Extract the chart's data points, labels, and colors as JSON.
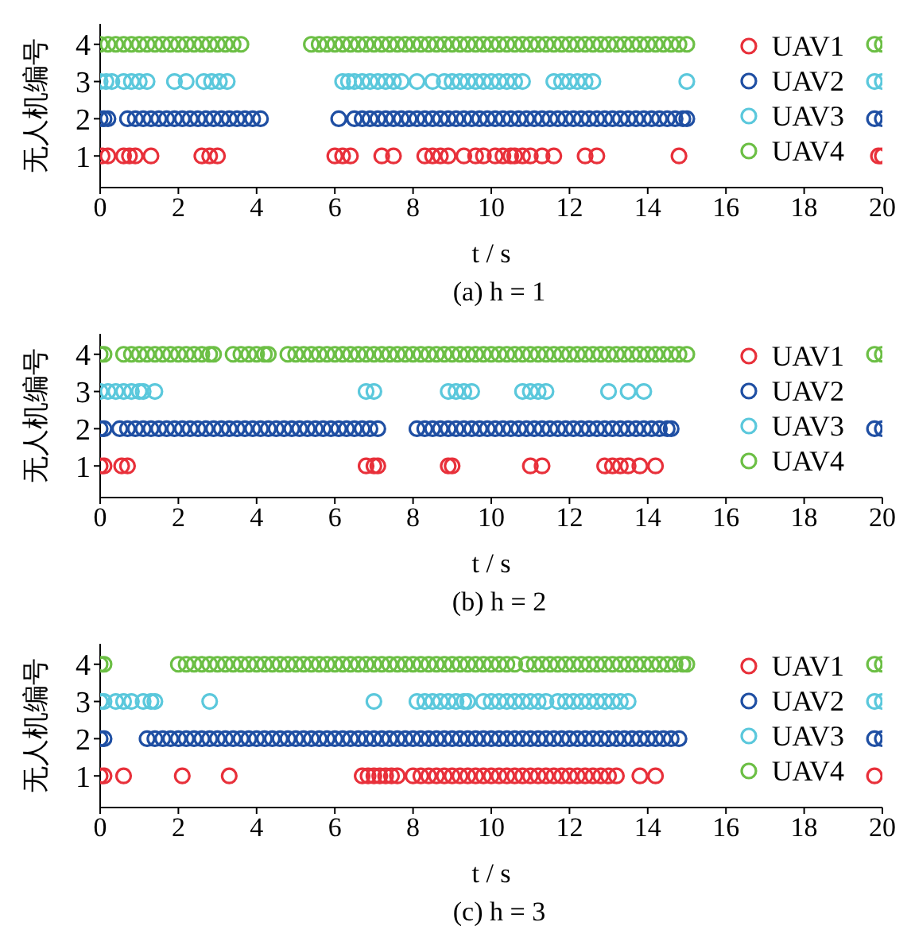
{
  "chart_data": [
    {
      "type": "scatter",
      "title": "(a) h = 1",
      "xlabel": "t / s",
      "ylabel": "无人机编号",
      "xlim": [
        0,
        20
      ],
      "xticks": [
        0,
        2,
        4,
        6,
        8,
        10,
        12,
        14,
        16,
        18,
        20
      ],
      "ylim": [
        0.15,
        4.55
      ],
      "yticks": [
        1,
        2,
        3,
        4
      ],
      "grid": false,
      "legend": "top right",
      "marker": "circle",
      "series": [
        {
          "name": "UAV1",
          "color": "#e8303a",
          "x": [
            0.05,
            0.2,
            0.6,
            0.75,
            0.9,
            1.3,
            2.6,
            2.8,
            3.0,
            6.0,
            6.2,
            6.4,
            7.2,
            7.5,
            8.3,
            8.5,
            8.7,
            8.9,
            9.3,
            9.6,
            9.8,
            10.1,
            10.3,
            10.5,
            10.6,
            10.8,
            11.0,
            11.3,
            11.6,
            12.4,
            12.7,
            14.8,
            19.9,
            20
          ],
          "values": [
            1,
            1,
            1,
            1,
            1,
            1,
            1,
            1,
            1,
            1,
            1,
            1,
            1,
            1,
            1,
            1,
            1,
            1,
            1,
            1,
            1,
            1,
            1,
            1,
            1,
            1,
            1,
            1,
            1,
            1,
            1,
            1,
            1,
            1
          ]
        },
        {
          "name": "UAV2",
          "color": "#1f4fa3",
          "x": [
            0,
            0.1,
            0.2,
            0.7,
            0.9,
            1.1,
            1.3,
            1.5,
            1.7,
            1.9,
            2.1,
            2.3,
            2.5,
            2.7,
            2.9,
            3.1,
            3.3,
            3.5,
            3.7,
            3.9,
            4.1,
            6.1,
            6.5,
            6.7,
            6.9,
            7.1,
            7.3,
            7.5,
            7.7,
            7.9,
            8.1,
            8.3,
            8.5,
            8.7,
            8.9,
            9.1,
            9.3,
            9.5,
            9.7,
            9.9,
            10.1,
            10.3,
            10.5,
            10.7,
            10.9,
            11.1,
            11.3,
            11.5,
            11.7,
            11.9,
            12.1,
            12.3,
            12.5,
            12.7,
            12.9,
            13.1,
            13.3,
            13.5,
            13.7,
            13.9,
            14.1,
            14.3,
            14.5,
            14.7,
            14.9,
            15.0,
            19.8,
            20
          ],
          "values": [
            2,
            2,
            2,
            2,
            2,
            2,
            2,
            2,
            2,
            2,
            2,
            2,
            2,
            2,
            2,
            2,
            2,
            2,
            2,
            2,
            2,
            2,
            2,
            2,
            2,
            2,
            2,
            2,
            2,
            2,
            2,
            2,
            2,
            2,
            2,
            2,
            2,
            2,
            2,
            2,
            2,
            2,
            2,
            2,
            2,
            2,
            2,
            2,
            2,
            2,
            2,
            2,
            2,
            2,
            2,
            2,
            2,
            2,
            2,
            2,
            2,
            2,
            2,
            2,
            2,
            2,
            2,
            2
          ]
        },
        {
          "name": "UAV3",
          "color": "#5bc8dc",
          "x": [
            0,
            0.15,
            0.3,
            0.6,
            0.8,
            1.0,
            1.2,
            1.9,
            2.2,
            2.65,
            2.85,
            3.05,
            3.25,
            6.2,
            6.35,
            6.5,
            6.7,
            6.9,
            7.1,
            7.3,
            7.5,
            7.7,
            8.1,
            8.5,
            8.8,
            9.0,
            9.2,
            9.4,
            9.6,
            9.8,
            10.0,
            10.2,
            10.4,
            10.6,
            10.8,
            11.6,
            11.8,
            12.0,
            12.2,
            12.4,
            12.6,
            15.0,
            19.8,
            20
          ],
          "values": [
            3,
            3,
            3,
            3,
            3,
            3,
            3,
            3,
            3,
            3,
            3,
            3,
            3,
            3,
            3,
            3,
            3,
            3,
            3,
            3,
            3,
            3,
            3,
            3,
            3,
            3,
            3,
            3,
            3,
            3,
            3,
            3,
            3,
            3,
            3,
            3,
            3,
            3,
            3,
            3,
            3,
            3,
            3,
            3
          ]
        },
        {
          "name": "UAV4",
          "color": "#6cbf45",
          "x": [
            0,
            0.2,
            0.4,
            0.6,
            0.8,
            1,
            1.2,
            1.4,
            1.6,
            1.8,
            2,
            2.2,
            2.4,
            2.6,
            2.8,
            3,
            3.2,
            3.4,
            3.6,
            5.4,
            5.6,
            5.8,
            6,
            6.2,
            6.4,
            6.6,
            6.8,
            7,
            7.2,
            7.4,
            7.6,
            7.8,
            8,
            8.2,
            8.4,
            8.6,
            8.8,
            9,
            9.2,
            9.4,
            9.6,
            9.8,
            10,
            10.2,
            10.4,
            10.6,
            10.8,
            11,
            11.2,
            11.4,
            11.6,
            11.8,
            12,
            12.2,
            12.4,
            12.6,
            12.8,
            13,
            13.2,
            13.4,
            13.6,
            13.8,
            14,
            14.2,
            14.4,
            14.6,
            14.8,
            15,
            19.8,
            20
          ],
          "values": [
            4,
            4,
            4,
            4,
            4,
            4,
            4,
            4,
            4,
            4,
            4,
            4,
            4,
            4,
            4,
            4,
            4,
            4,
            4,
            4,
            4,
            4,
            4,
            4,
            4,
            4,
            4,
            4,
            4,
            4,
            4,
            4,
            4,
            4,
            4,
            4,
            4,
            4,
            4,
            4,
            4,
            4,
            4,
            4,
            4,
            4,
            4,
            4,
            4,
            4,
            4,
            4,
            4,
            4,
            4,
            4,
            4,
            4,
            4,
            4,
            4,
            4,
            4,
            4,
            4,
            4,
            4,
            4,
            4,
            4
          ]
        }
      ]
    },
    {
      "type": "scatter",
      "title": "(b) h = 2",
      "xlabel": "t / s",
      "ylabel": "无人机编号",
      "xlim": [
        0,
        20
      ],
      "xticks": [
        0,
        2,
        4,
        6,
        8,
        10,
        12,
        14,
        16,
        18,
        20
      ],
      "ylim": [
        0.15,
        4.55
      ],
      "yticks": [
        1,
        2,
        3,
        4
      ],
      "grid": false,
      "legend": "top right",
      "marker": "circle",
      "series": [
        {
          "name": "UAV1",
          "color": "#e8303a",
          "x": [
            0,
            0.1,
            0.55,
            0.7,
            6.8,
            7.0,
            7.1,
            8.9,
            9.0,
            11.0,
            11.3,
            12.9,
            13.1,
            13.3,
            13.5,
            13.8,
            14.2
          ],
          "values": [
            1,
            1,
            1,
            1,
            1,
            1,
            1,
            1,
            1,
            1,
            1,
            1,
            1,
            1,
            1,
            1,
            1
          ]
        },
        {
          "name": "UAV2",
          "color": "#1f4fa3",
          "x": [
            0,
            0.1,
            0.5,
            0.7,
            0.9,
            1.1,
            1.3,
            1.5,
            1.7,
            1.9,
            2.1,
            2.3,
            2.5,
            2.7,
            2.9,
            3.1,
            3.3,
            3.5,
            3.7,
            3.9,
            4.1,
            4.3,
            4.5,
            4.7,
            4.9,
            5.1,
            5.3,
            5.5,
            5.7,
            5.9,
            6.1,
            6.3,
            6.5,
            6.7,
            6.9,
            7.1,
            8.1,
            8.3,
            8.5,
            8.7,
            8.9,
            9.1,
            9.3,
            9.5,
            9.7,
            9.9,
            10.1,
            10.3,
            10.5,
            10.7,
            10.9,
            11.1,
            11.3,
            11.5,
            11.7,
            11.9,
            12.1,
            12.3,
            12.5,
            12.7,
            12.9,
            13.1,
            13.3,
            13.5,
            13.7,
            13.9,
            14.1,
            14.3,
            14.5,
            14.6,
            19.8,
            20
          ],
          "values": [
            2,
            2,
            2,
            2,
            2,
            2,
            2,
            2,
            2,
            2,
            2,
            2,
            2,
            2,
            2,
            2,
            2,
            2,
            2,
            2,
            2,
            2,
            2,
            2,
            2,
            2,
            2,
            2,
            2,
            2,
            2,
            2,
            2,
            2,
            2,
            2,
            2,
            2,
            2,
            2,
            2,
            2,
            2,
            2,
            2,
            2,
            2,
            2,
            2,
            2,
            2,
            2,
            2,
            2,
            2,
            2,
            2,
            2,
            2,
            2,
            2,
            2,
            2,
            2,
            2,
            2,
            2,
            2,
            2,
            2,
            2,
            2
          ]
        },
        {
          "name": "UAV3",
          "color": "#5bc8dc",
          "x": [
            0,
            0.2,
            0.4,
            0.6,
            0.8,
            1.0,
            1.1,
            1.4,
            6.8,
            7.0,
            8.9,
            9.1,
            9.3,
            9.5,
            10.8,
            11.0,
            11.2,
            11.4,
            13.0,
            13.5,
            13.9
          ],
          "values": [
            3,
            3,
            3,
            3,
            3,
            3,
            3,
            3,
            3,
            3,
            3,
            3,
            3,
            3,
            3,
            3,
            3,
            3,
            3,
            3,
            3
          ]
        },
        {
          "name": "UAV4",
          "color": "#6cbf45",
          "x": [
            0,
            0.1,
            0.6,
            0.8,
            1,
            1.2,
            1.4,
            1.6,
            1.8,
            2,
            2.2,
            2.4,
            2.6,
            2.8,
            2.9,
            3.4,
            3.6,
            3.8,
            4.0,
            4.2,
            4.3,
            4.8,
            5,
            5.2,
            5.4,
            5.6,
            5.8,
            6,
            6.2,
            6.4,
            6.6,
            6.8,
            7,
            7.2,
            7.4,
            7.6,
            7.8,
            8,
            8.2,
            8.4,
            8.6,
            8.8,
            9,
            9.2,
            9.4,
            9.6,
            9.8,
            10,
            10.2,
            10.4,
            10.6,
            10.8,
            11,
            11.2,
            11.4,
            11.6,
            11.8,
            12,
            12.2,
            12.4,
            12.6,
            12.8,
            13,
            13.2,
            13.4,
            13.6,
            13.8,
            14,
            14.2,
            14.4,
            14.6,
            14.8,
            15,
            19.8,
            20
          ],
          "values": [
            4,
            4,
            4,
            4,
            4,
            4,
            4,
            4,
            4,
            4,
            4,
            4,
            4,
            4,
            4,
            4,
            4,
            4,
            4,
            4,
            4,
            4,
            4,
            4,
            4,
            4,
            4,
            4,
            4,
            4,
            4,
            4,
            4,
            4,
            4,
            4,
            4,
            4,
            4,
            4,
            4,
            4,
            4,
            4,
            4,
            4,
            4,
            4,
            4,
            4,
            4,
            4,
            4,
            4,
            4,
            4,
            4,
            4,
            4,
            4,
            4,
            4,
            4,
            4,
            4,
            4,
            4,
            4,
            4,
            4,
            4,
            4,
            4,
            4,
            4
          ]
        }
      ]
    },
    {
      "type": "scatter",
      "title": "(c) h = 3",
      "xlabel": "t / s",
      "ylabel": "无人机编号",
      "xlim": [
        0,
        20
      ],
      "xticks": [
        0,
        2,
        4,
        6,
        8,
        10,
        12,
        14,
        16,
        18,
        20
      ],
      "ylim": [
        0.15,
        4.55
      ],
      "yticks": [
        1,
        2,
        3,
        4
      ],
      "grid": false,
      "legend": "top right",
      "marker": "circle",
      "series": [
        {
          "name": "UAV1",
          "color": "#e8303a",
          "x": [
            0,
            0.1,
            0.6,
            2.1,
            3.3,
            6.7,
            6.85,
            7.0,
            7.15,
            7.3,
            7.45,
            7.6,
            8.0,
            8.2,
            8.4,
            8.6,
            8.8,
            9,
            9.2,
            9.4,
            9.6,
            9.8,
            10,
            10.2,
            10.4,
            10.6,
            10.8,
            11,
            11.2,
            11.4,
            11.6,
            11.8,
            12,
            12.2,
            12.4,
            12.6,
            12.8,
            13,
            13.2,
            13.8,
            14.2,
            19.8
          ],
          "values": [
            1,
            1,
            1,
            1,
            1,
            1,
            1,
            1,
            1,
            1,
            1,
            1,
            1,
            1,
            1,
            1,
            1,
            1,
            1,
            1,
            1,
            1,
            1,
            1,
            1,
            1,
            1,
            1,
            1,
            1,
            1,
            1,
            1,
            1,
            1,
            1,
            1,
            1,
            1,
            1,
            1,
            1
          ]
        },
        {
          "name": "UAV2",
          "color": "#1f4fa3",
          "x": [
            0,
            0.1,
            1.2,
            1.4,
            1.6,
            1.8,
            2,
            2.2,
            2.4,
            2.6,
            2.8,
            3,
            3.2,
            3.4,
            3.6,
            3.8,
            4,
            4.2,
            4.4,
            4.6,
            4.8,
            5,
            5.2,
            5.4,
            5.6,
            5.8,
            6,
            6.2,
            6.4,
            6.6,
            6.8,
            7,
            7.2,
            7.4,
            7.6,
            7.8,
            8,
            8.2,
            8.4,
            8.6,
            8.8,
            9,
            9.2,
            9.4,
            9.6,
            9.8,
            10,
            10.2,
            10.4,
            10.6,
            10.8,
            11,
            11.2,
            11.4,
            11.6,
            11.8,
            12,
            12.2,
            12.4,
            12.6,
            12.8,
            13,
            13.2,
            13.4,
            13.6,
            13.8,
            14,
            14.2,
            14.4,
            14.6,
            14.8,
            19.8,
            20
          ],
          "values": [
            2,
            2,
            2,
            2,
            2,
            2,
            2,
            2,
            2,
            2,
            2,
            2,
            2,
            2,
            2,
            2,
            2,
            2,
            2,
            2,
            2,
            2,
            2,
            2,
            2,
            2,
            2,
            2,
            2,
            2,
            2,
            2,
            2,
            2,
            2,
            2,
            2,
            2,
            2,
            2,
            2,
            2,
            2,
            2,
            2,
            2,
            2,
            2,
            2,
            2,
            2,
            2,
            2,
            2,
            2,
            2,
            2,
            2,
            2,
            2,
            2,
            2,
            2,
            2,
            2,
            2,
            2,
            2,
            2,
            2,
            2,
            2,
            2
          ]
        },
        {
          "name": "UAV3",
          "color": "#5bc8dc",
          "x": [
            0,
            0.1,
            0.4,
            0.6,
            0.8,
            1.1,
            1.3,
            1.4,
            2.8,
            7.0,
            8.1,
            8.3,
            8.5,
            8.7,
            8.9,
            9.1,
            9.3,
            9.4,
            9.8,
            10,
            10.2,
            10.4,
            10.6,
            10.8,
            11,
            11.2,
            11.4,
            11.7,
            11.9,
            12.1,
            12.3,
            12.5,
            12.7,
            12.9,
            13.1,
            13.3,
            13.5,
            19.8,
            20
          ],
          "values": [
            3,
            3,
            3,
            3,
            3,
            3,
            3,
            3,
            3,
            3,
            3,
            3,
            3,
            3,
            3,
            3,
            3,
            3,
            3,
            3,
            3,
            3,
            3,
            3,
            3,
            3,
            3,
            3,
            3,
            3,
            3,
            3,
            3,
            3,
            3,
            3,
            3,
            3,
            3
          ]
        },
        {
          "name": "UAV4",
          "color": "#6cbf45",
          "x": [
            0,
            0.1,
            2,
            2.2,
            2.4,
            2.6,
            2.8,
            3,
            3.2,
            3.4,
            3.6,
            3.8,
            4,
            4.2,
            4.4,
            4.6,
            4.8,
            5,
            5.2,
            5.4,
            5.6,
            5.8,
            6,
            6.2,
            6.4,
            6.6,
            6.8,
            7,
            7.2,
            7.4,
            7.6,
            7.8,
            8,
            8.2,
            8.4,
            8.6,
            8.8,
            9,
            9.2,
            9.4,
            9.6,
            9.8,
            10,
            10.2,
            10.4,
            10.6,
            10.9,
            11.1,
            11.3,
            11.5,
            11.7,
            11.9,
            12.1,
            12.3,
            12.5,
            12.7,
            12.9,
            13.1,
            13.3,
            13.5,
            13.7,
            13.9,
            14.1,
            14.3,
            14.5,
            14.7,
            14.9,
            15.0,
            19.8,
            20
          ],
          "values": [
            4,
            4,
            4,
            4,
            4,
            4,
            4,
            4,
            4,
            4,
            4,
            4,
            4,
            4,
            4,
            4,
            4,
            4,
            4,
            4,
            4,
            4,
            4,
            4,
            4,
            4,
            4,
            4,
            4,
            4,
            4,
            4,
            4,
            4,
            4,
            4,
            4,
            4,
            4,
            4,
            4,
            4,
            4,
            4,
            4,
            4,
            4,
            4,
            4,
            4,
            4,
            4,
            4,
            4,
            4,
            4,
            4,
            4,
            4,
            4,
            4,
            4,
            4,
            4,
            4,
            4,
            4,
            4,
            4,
            4
          ]
        }
      ]
    }
  ]
}
